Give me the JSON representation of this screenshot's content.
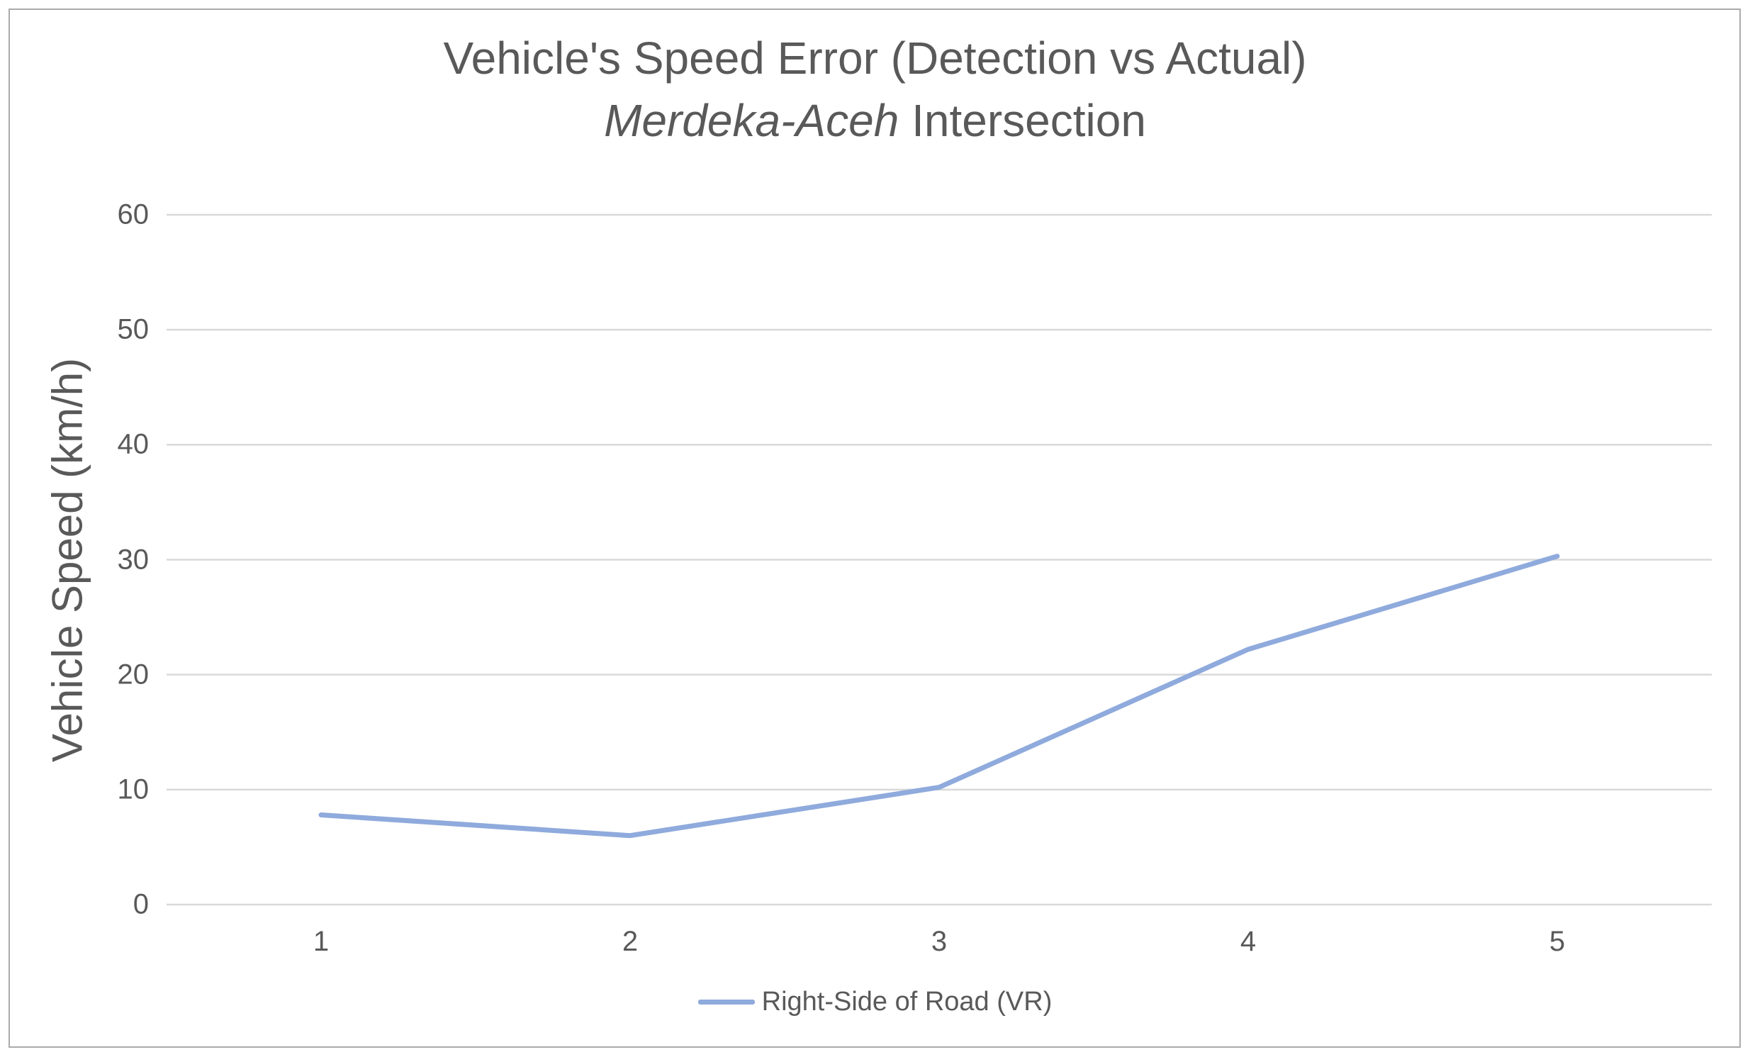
{
  "chart": {
    "title_line1": "Vehicle's Speed Error (Detection vs Actual)",
    "title_line2_italic": "Merdeka-Aceh",
    "title_line2_rest": " Intersection",
    "y_axis_title": "Vehicle Speed (km/h)",
    "legend_label": "Right-Side of Road (VR)",
    "colors": {
      "series_line": "#8faadc",
      "gridline": "#d9d9d9",
      "text": "#595959",
      "frame_border": "#ababab",
      "background": "#ffffff"
    }
  },
  "chart_data": {
    "type": "line",
    "title": "Vehicle's Speed Error (Detection vs Actual) Merdeka-Aceh Intersection",
    "xlabel": "",
    "ylabel": "Vehicle Speed (km/h)",
    "categories": [
      1,
      2,
      3,
      4,
      5
    ],
    "series": [
      {
        "name": "Right-Side of Road (VR)",
        "values": [
          7.8,
          6.0,
          10.2,
          22.2,
          30.3
        ]
      }
    ],
    "ylim": [
      0,
      60
    ],
    "ytick_step": 10,
    "yticks": [
      0,
      10,
      20,
      30,
      40,
      50,
      60
    ],
    "grid": true,
    "gridlines": "horizontal-only",
    "legend_position": "bottom-center"
  }
}
